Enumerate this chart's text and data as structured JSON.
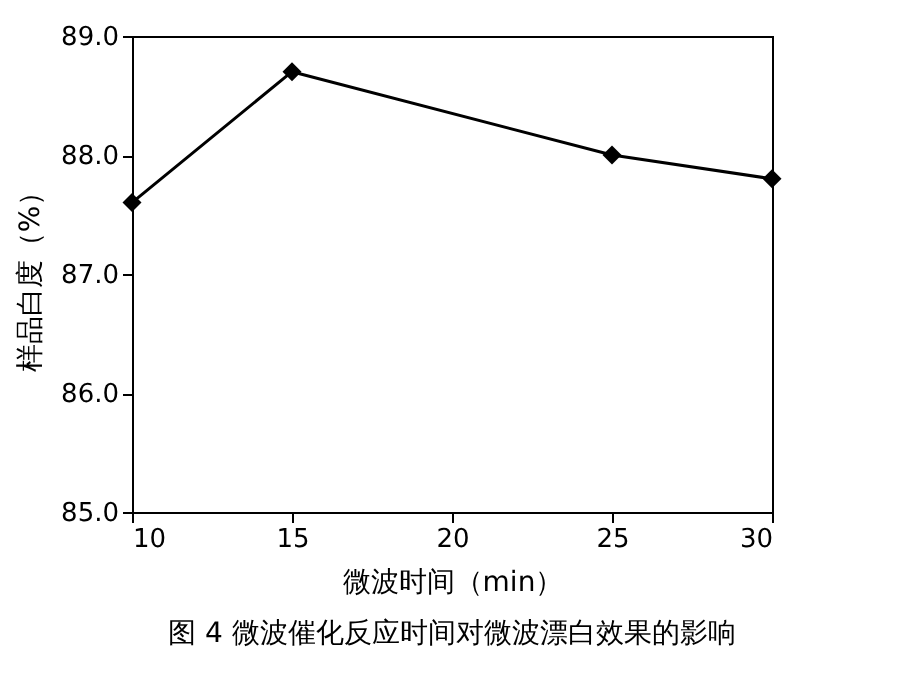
{
  "chart_data": {
    "type": "line",
    "x": [
      10,
      15,
      25,
      30
    ],
    "series": [
      {
        "color": "#000000",
        "values": [
          87.6,
          88.7,
          88.0,
          87.8
        ]
      }
    ],
    "xlabel": "微波时间（min）",
    "ylabel": "样品白度（%）",
    "xlim": [
      10,
      30
    ],
    "xticks": [
      10,
      15,
      20,
      25,
      30
    ],
    "ylim": [
      85,
      89
    ],
    "yticks": [
      {
        "value": 85,
        "label": "85.0"
      },
      {
        "value": 86,
        "label": "86.0"
      },
      {
        "value": 87,
        "label": "87.0"
      },
      {
        "value": 88,
        "label": "88.0"
      },
      {
        "value": 89,
        "label": "89.0"
      }
    ],
    "marker": "diamond",
    "line_style": "solid",
    "grid": false,
    "annotations": [
      "图 4  微波催化反应时间对微波漂白效果的影响"
    ]
  }
}
